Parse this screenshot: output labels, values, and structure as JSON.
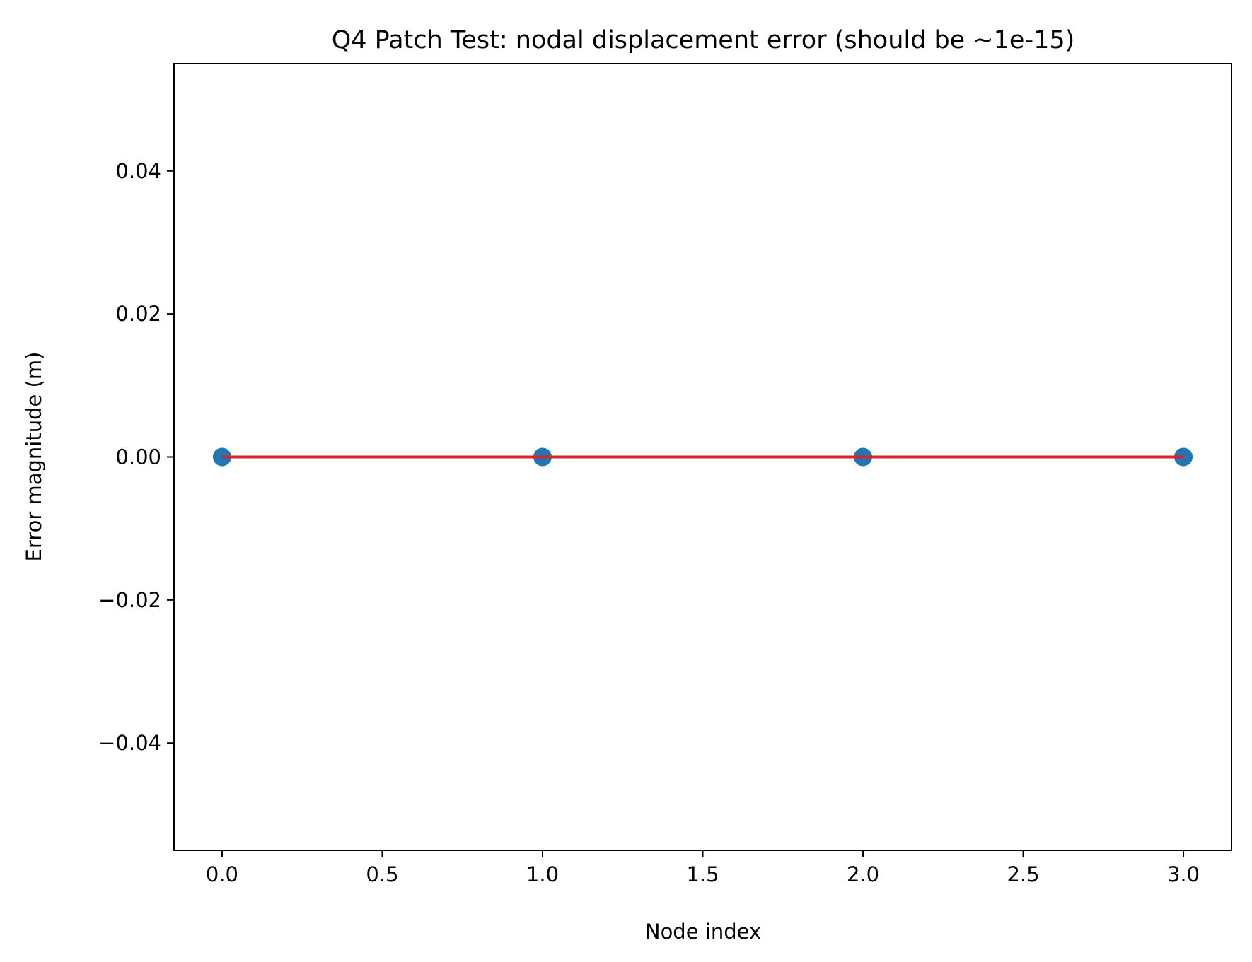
{
  "chart_data": {
    "type": "scatter",
    "title": "Q4 Patch Test: nodal displacement error (should be ~1e-15)",
    "xlabel": "Node index",
    "ylabel": "Error magnitude (m)",
    "xlim": [
      -0.15,
      3.15
    ],
    "ylim": [
      -0.055,
      0.055
    ],
    "x_ticks": [
      0.0,
      0.5,
      1.0,
      1.5,
      2.0,
      2.5,
      3.0
    ],
    "x_tick_labels": [
      "0.0",
      "0.5",
      "1.0",
      "1.5",
      "2.0",
      "2.5",
      "3.0"
    ],
    "y_ticks": [
      0.04,
      0.02,
      0.0,
      -0.02,
      -0.04
    ],
    "y_tick_labels": [
      "0.04",
      "0.02",
      "0.00",
      "−0.02",
      "−0.04"
    ],
    "grid": false,
    "series": [
      {
        "kind": "scatter",
        "x": [
          0,
          1,
          2,
          3
        ],
        "y": [
          0,
          0,
          0,
          0
        ],
        "color": "#1f77b4"
      },
      {
        "kind": "line",
        "x": [
          0,
          3
        ],
        "y": [
          0,
          0
        ],
        "color": "#d62728"
      }
    ]
  }
}
